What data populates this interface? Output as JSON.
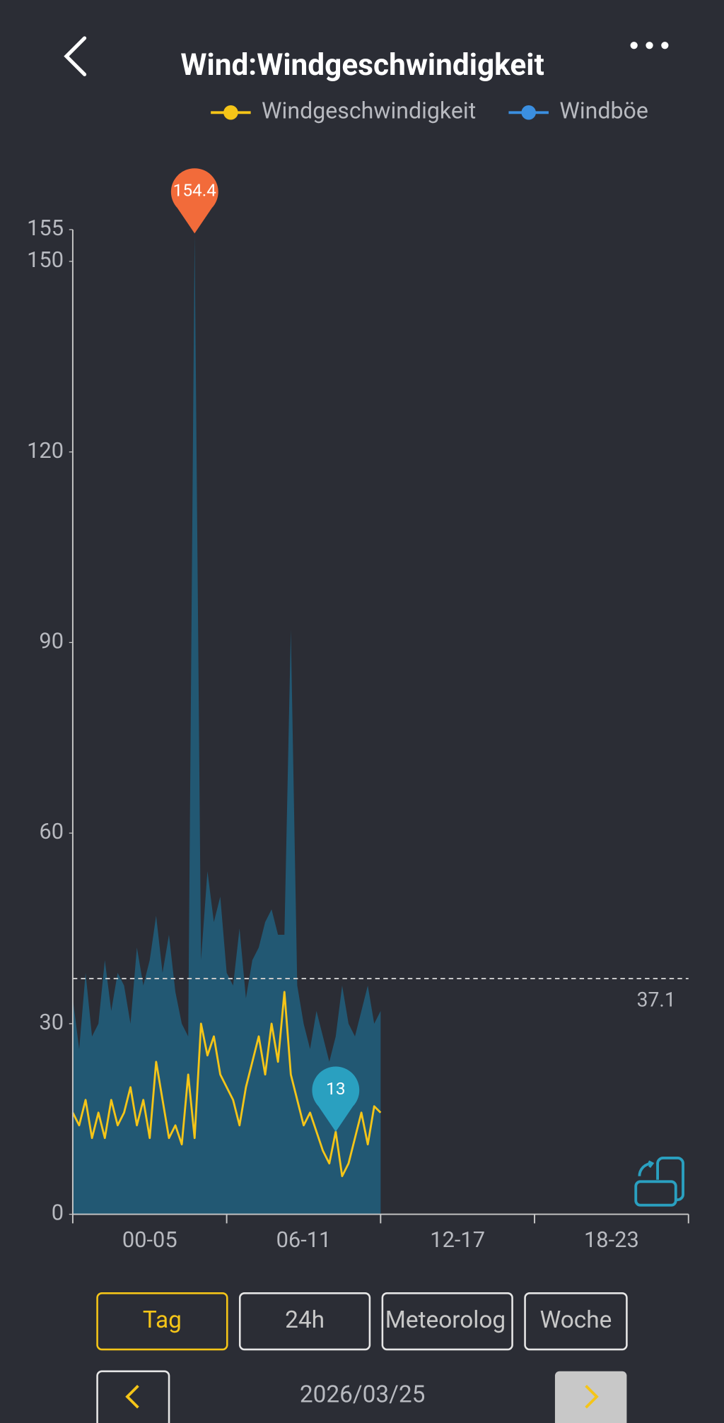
{
  "header": {
    "title": "Wind:Windgeschwindigkeit"
  },
  "chart_data": {
    "type": "area-line",
    "x": [
      0,
      0.25,
      0.5,
      0.75,
      1,
      1.25,
      1.5,
      1.75,
      2,
      2.25,
      2.5,
      2.75,
      3,
      3.25,
      3.5,
      3.75,
      4,
      4.25,
      4.5,
      4.75,
      5,
      5.25,
      5.5,
      5.75,
      6,
      6.25,
      6.5,
      6.75,
      7,
      7.25,
      7.5,
      7.75,
      8,
      8.25,
      8.5,
      8.75,
      9,
      9.25,
      9.5,
      9.75,
      10,
      10.25,
      10.5,
      10.75,
      11,
      11.25,
      11.5,
      11.75,
      12
    ],
    "xlim": [
      0,
      24
    ],
    "categories": [
      "00-05",
      "06-11",
      "12-17",
      "18-23"
    ],
    "series": [
      {
        "name": "Windgeschwindigkeit",
        "color": "#f5c518",
        "values": [
          16,
          14,
          18,
          12,
          16,
          12,
          18,
          14,
          16,
          20,
          14,
          18,
          12,
          24,
          18,
          12,
          14,
          11,
          22,
          12,
          30,
          25,
          28,
          22,
          20,
          18,
          14,
          20,
          24,
          28,
          22,
          30,
          24,
          35,
          22,
          18,
          14,
          16,
          13,
          10,
          8,
          13,
          6,
          8,
          12,
          16,
          11,
          17,
          16
        ]
      },
      {
        "name": "Windböe",
        "color": "#3b8fe0",
        "fill": "#225873",
        "values": [
          34,
          26,
          38,
          28,
          30,
          40,
          32,
          38,
          36,
          30,
          42,
          36,
          40,
          47,
          38,
          44,
          35,
          30,
          28,
          154.4,
          40,
          54,
          46,
          50,
          38,
          36,
          45,
          34,
          40,
          42,
          46,
          48,
          44,
          44,
          92,
          36,
          30,
          26,
          32,
          28,
          24,
          28,
          36,
          30,
          28,
          32,
          36,
          30,
          32
        ]
      }
    ],
    "ylim": [
      0,
      155
    ],
    "yticks": [
      0,
      30,
      60,
      90,
      120,
      150,
      155
    ],
    "reference_line": {
      "value": 37.1
    },
    "markers": [
      {
        "value": 154.4,
        "x": 4.75,
        "color": "#f26b3a"
      },
      {
        "value": 13,
        "x": 10.25,
        "color": "#2aa0c0"
      }
    ]
  },
  "tabs": [
    "Tag",
    "24h",
    "Meteorolog",
    "Woche"
  ],
  "date": "2026/03/25"
}
